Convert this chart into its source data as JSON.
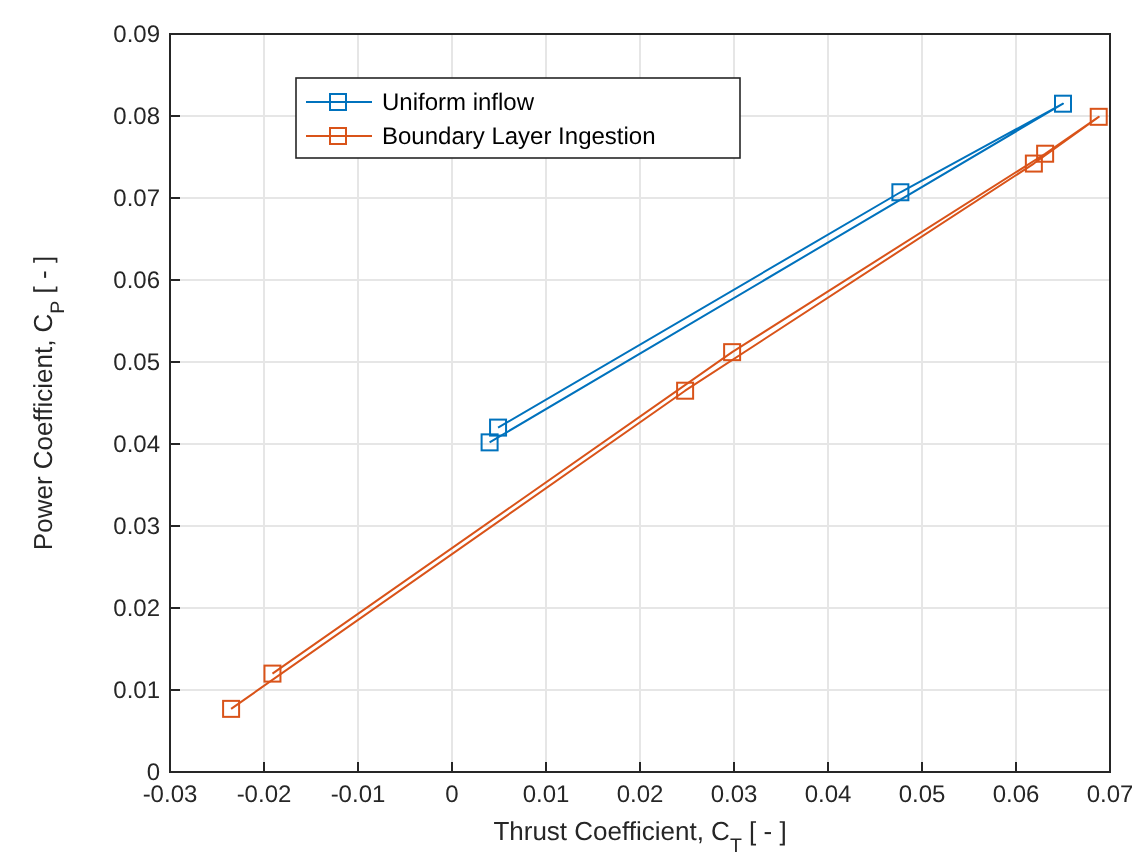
{
  "chart_data": {
    "type": "line",
    "xlabel": "Thrust Coefficient, C$_{T}$ [ - ]",
    "ylabel": "Power Coefficient, C$_{P}$ [ - ]",
    "xlim": [
      -0.03,
      0.07
    ],
    "xticks": [
      -0.03,
      -0.02,
      -0.01,
      0,
      0.01,
      0.02,
      0.03,
      0.04,
      0.05,
      0.06,
      0.07
    ],
    "ylim": [
      0,
      0.09
    ],
    "yticks": [
      0,
      0.01,
      0.02,
      0.03,
      0.04,
      0.05,
      0.06,
      0.07,
      0.08,
      0.09
    ],
    "grid": true,
    "legend": "top left",
    "marker": "square",
    "line_style": "solid",
    "series": [
      {
        "name": "Uniform inflow",
        "color": "#0072bd",
        "x": [
          0.004,
          0.065,
          0.0477,
          0.0049
        ],
        "values": [
          0.0402,
          0.0815,
          0.0707,
          0.042
        ]
      },
      {
        "name": "Boundary Layer Ingestion",
        "color": "#d95319",
        "x": [
          -0.0235,
          0.0248,
          0.0619,
          0.0688,
          0.0631,
          0.0298,
          -0.0191
        ],
        "values": [
          0.0077,
          0.0465,
          0.0742,
          0.0799,
          0.0754,
          0.0512,
          0.012
        ]
      }
    ]
  }
}
